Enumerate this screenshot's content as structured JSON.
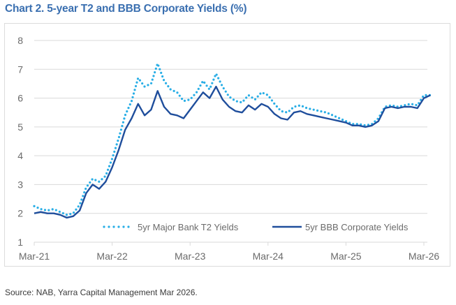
{
  "title": "Chart 2. 5-year T2 and BBB Corporate Yields (%)",
  "source": "Source: NAB, Yarra Capital Management Mar 2026.",
  "colors": {
    "title": "#3a6fb0",
    "t2": "#29aee6",
    "bbb": "#1f4e9c",
    "grid": "#d9d9d9",
    "axis_text": "#6b6b6b"
  },
  "chart_data": {
    "type": "line",
    "title": "Chart 2. 5-year T2 and BBB Corporate Yields (%)",
    "xlabel": "",
    "ylabel": "",
    "ylim": [
      1,
      8
    ],
    "yticks": [
      "1",
      "2",
      "3",
      "4",
      "5",
      "6",
      "7",
      "8"
    ],
    "xticks": [
      "Mar-21",
      "Mar-22",
      "Mar-23",
      "Mar-24",
      "Mar-25",
      "Mar-26"
    ],
    "grid": true,
    "legend_position": "bottom",
    "x_unit": "months since Mar-21",
    "x": [
      0,
      1,
      2,
      3,
      4,
      5,
      6,
      7,
      8,
      9,
      10,
      11,
      12,
      13,
      14,
      15,
      16,
      17,
      18,
      19,
      20,
      21,
      22,
      23,
      24,
      25,
      26,
      27,
      28,
      29,
      30,
      31,
      32,
      33,
      34,
      35,
      36,
      37,
      38,
      39,
      40,
      41,
      42,
      43,
      44,
      45,
      46,
      47,
      48,
      49,
      50,
      51,
      52,
      53,
      54,
      55,
      56,
      57,
      58,
      59,
      60,
      61
    ],
    "series": [
      {
        "name": "5yr Major Bank T2 Yields",
        "style": "dotted",
        "values": [
          2.25,
          2.15,
          2.1,
          2.15,
          2.05,
          1.95,
          2.0,
          2.3,
          2.9,
          3.2,
          3.1,
          3.3,
          3.9,
          4.6,
          5.4,
          5.9,
          6.7,
          6.4,
          6.5,
          7.2,
          6.6,
          6.3,
          6.2,
          5.9,
          5.95,
          6.2,
          6.6,
          6.3,
          6.85,
          6.4,
          6.05,
          5.9,
          5.85,
          6.1,
          5.95,
          6.2,
          6.1,
          5.8,
          5.55,
          5.5,
          5.7,
          5.75,
          5.65,
          5.6,
          5.55,
          5.5,
          5.4,
          5.3,
          5.2,
          5.1,
          5.1,
          5.05,
          5.1,
          5.3,
          5.7,
          5.75,
          5.7,
          5.75,
          5.8,
          5.75,
          6.1,
          6.1
        ]
      },
      {
        "name": "5yr BBB Corporate Yields",
        "style": "solid",
        "values": [
          2.0,
          2.05,
          2.0,
          2.0,
          1.95,
          1.85,
          1.9,
          2.1,
          2.7,
          3.0,
          2.85,
          3.1,
          3.6,
          4.2,
          4.9,
          5.3,
          5.8,
          5.4,
          5.6,
          6.25,
          5.7,
          5.45,
          5.4,
          5.3,
          5.6,
          5.9,
          6.2,
          6.0,
          6.4,
          5.95,
          5.7,
          5.55,
          5.5,
          5.75,
          5.6,
          5.8,
          5.7,
          5.45,
          5.3,
          5.25,
          5.5,
          5.55,
          5.45,
          5.4,
          5.35,
          5.3,
          5.25,
          5.2,
          5.15,
          5.05,
          5.05,
          5.0,
          5.05,
          5.2,
          5.65,
          5.7,
          5.65,
          5.7,
          5.7,
          5.65,
          6.0,
          6.1
        ]
      }
    ]
  }
}
